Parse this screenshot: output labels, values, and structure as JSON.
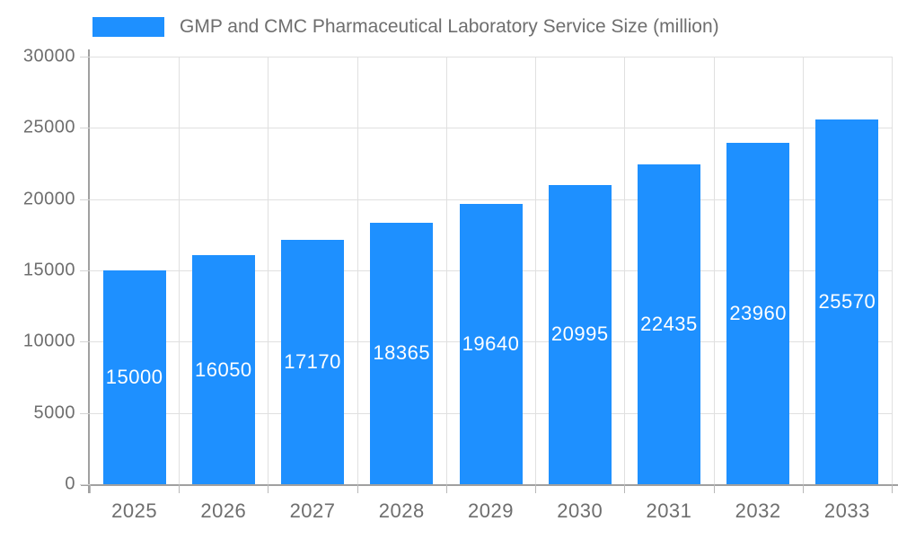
{
  "legend": {
    "label": "GMP and CMC Pharmaceutical Laboratory Service Size (million)"
  },
  "colors": {
    "bar": "#1e90ff",
    "grid": "#e0e0e0",
    "axis": "#a0a0a0",
    "tick_text": "#6e6e6e",
    "bar_label": "#ffffff",
    "background": "#ffffff"
  },
  "chart_data": {
    "type": "bar",
    "title": "",
    "xlabel": "",
    "ylabel": "",
    "series_name": "GMP and CMC Pharmaceutical Laboratory Service Size (million)",
    "categories": [
      "2025",
      "2026",
      "2027",
      "2028",
      "2029",
      "2030",
      "2031",
      "2032",
      "2033"
    ],
    "values": [
      15000,
      16050,
      17170,
      18365,
      19640,
      20995,
      22435,
      23960,
      25570
    ],
    "bar_value_labels": [
      "15000",
      "16050",
      "17170",
      "18365",
      "19640",
      "20995",
      "22435",
      "23960",
      "25570"
    ],
    "ylim": [
      0,
      30000
    ],
    "yticks": [
      0,
      5000,
      10000,
      15000,
      20000,
      25000,
      30000
    ],
    "ytick_labels": [
      "0",
      "5000",
      "10000",
      "15000",
      "20000",
      "25000",
      "30000"
    ],
    "grid": true,
    "legend_position": "top-left",
    "value_labels_position": "inside-center"
  }
}
